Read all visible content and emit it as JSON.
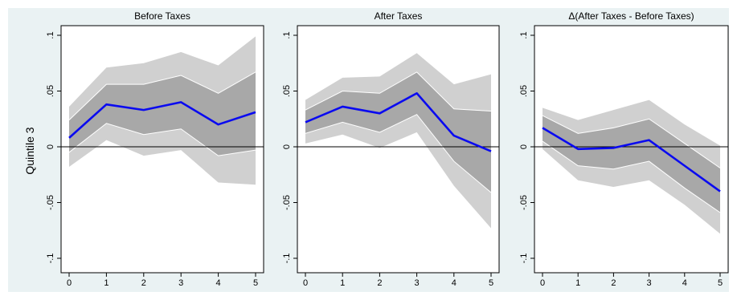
{
  "figure": {
    "row_label": "Quintile 3",
    "background_color": "#eaf2f3",
    "outer_band_color": "#d0d0d0",
    "inner_band_color": "#a8a8a8",
    "band_edge_color": "#ffffff",
    "line_color": "#0a0af0",
    "zero_line_color": "#000000"
  },
  "chart_data": [
    {
      "type": "line",
      "title": "Before Taxes",
      "x": [
        0,
        1,
        2,
        3,
        4,
        5
      ],
      "xticks": [
        "0",
        "1",
        "2",
        "3",
        "4",
        "5"
      ],
      "ylim": [
        -0.1,
        0.1
      ],
      "yticks": [
        -0.1,
        -0.05,
        0,
        0.05,
        0.1
      ],
      "ytick_labels": [
        "-.1",
        "-.05",
        "0",
        ".05",
        ".1"
      ],
      "grid": false,
      "estimate": [
        0.008,
        0.038,
        0.033,
        0.04,
        0.02,
        0.031
      ],
      "inner_band": {
        "lower": [
          -0.005,
          0.021,
          0.011,
          0.016,
          -0.008,
          -0.003
        ],
        "upper": [
          0.024,
          0.056,
          0.056,
          0.064,
          0.048,
          0.067
        ]
      },
      "outer_band": {
        "lower": [
          -0.018,
          0.006,
          -0.008,
          -0.003,
          -0.032,
          -0.034
        ],
        "upper": [
          0.036,
          0.071,
          0.075,
          0.085,
          0.073,
          0.099
        ]
      }
    },
    {
      "type": "line",
      "title": "After Taxes",
      "x": [
        0,
        1,
        2,
        3,
        4,
        5
      ],
      "xticks": [
        "0",
        "1",
        "2",
        "3",
        "4",
        "5"
      ],
      "ylim": [
        -0.1,
        0.1
      ],
      "yticks": [
        -0.1,
        -0.05,
        0,
        0.05,
        0.1
      ],
      "ytick_labels": [
        "-.1",
        "-.05",
        "0",
        ".05",
        ".1"
      ],
      "grid": false,
      "estimate": [
        0.022,
        0.036,
        0.03,
        0.048,
        0.01,
        -0.004
      ],
      "inner_band": {
        "lower": [
          0.012,
          0.022,
          0.013,
          0.029,
          -0.013,
          -0.041
        ],
        "upper": [
          0.033,
          0.05,
          0.048,
          0.067,
          0.034,
          0.032
        ]
      },
      "outer_band": {
        "lower": [
          0.003,
          0.011,
          -0.001,
          0.013,
          -0.035,
          -0.073
        ],
        "upper": [
          0.042,
          0.062,
          0.063,
          0.084,
          0.056,
          0.065
        ]
      }
    },
    {
      "type": "line",
      "title": "Δ(After Taxes - Before Taxes)",
      "x": [
        0,
        1,
        2,
        3,
        4,
        5
      ],
      "xticks": [
        "0",
        "1",
        "2",
        "3",
        "4",
        "5"
      ],
      "ylim": [
        -0.1,
        0.1
      ],
      "yticks": [
        -0.1,
        -0.05,
        0,
        0.05,
        0.1
      ],
      "ytick_labels": [
        "-.1",
        "-.05",
        "0",
        ".05",
        ".1"
      ],
      "grid": false,
      "estimate": [
        0.017,
        -0.002,
        -0.001,
        0.006,
        -0.017,
        -0.04
      ],
      "inner_band": {
        "lower": [
          0.005,
          -0.017,
          -0.02,
          -0.013,
          -0.037,
          -0.059
        ],
        "upper": [
          0.028,
          0.012,
          0.017,
          0.025,
          0.003,
          -0.019
        ]
      },
      "outer_band": {
        "lower": [
          -0.002,
          -0.03,
          -0.036,
          -0.03,
          -0.052,
          -0.078
        ],
        "upper": [
          0.035,
          0.024,
          0.033,
          0.042,
          0.02,
          0.001
        ]
      }
    }
  ]
}
